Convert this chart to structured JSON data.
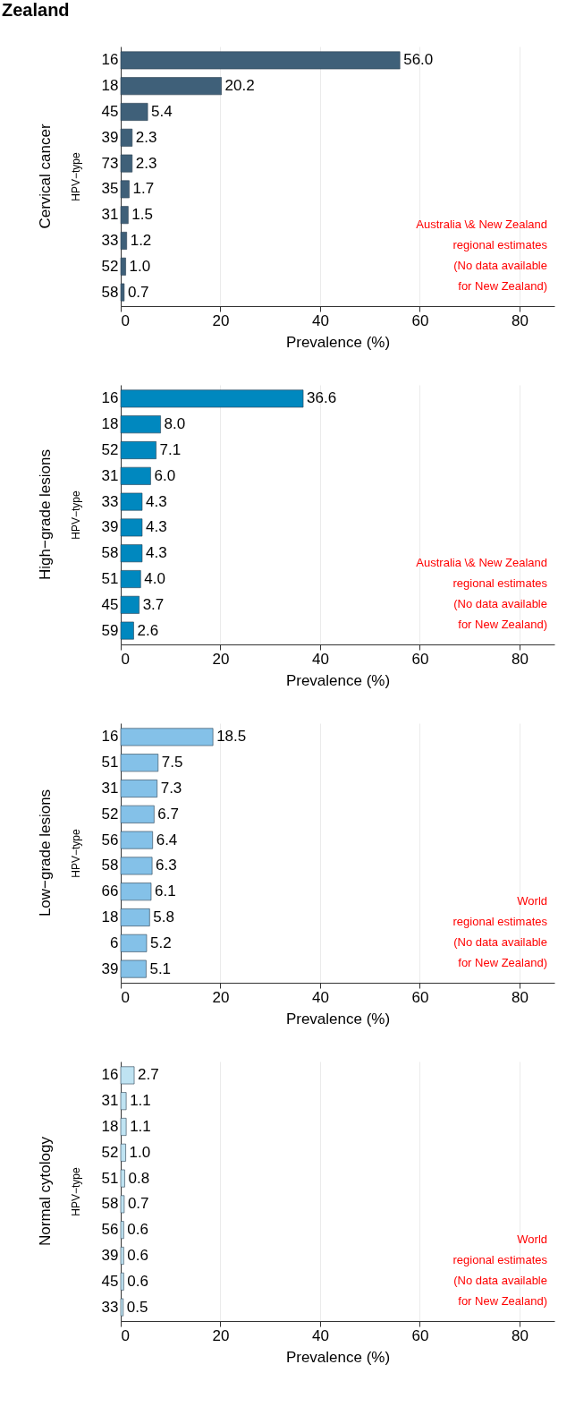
{
  "chart_data": [
    {
      "type": "bar",
      "orientation": "horizontal",
      "subtitle": "Zealand",
      "title": "Cervical cancer",
      "xlabel": "Prevalence (%)",
      "ylabel": "HPV−type",
      "categories": [
        "16",
        "18",
        "45",
        "39",
        "73",
        "35",
        "31",
        "33",
        "52",
        "58"
      ],
      "values": [
        56.0,
        20.2,
        5.4,
        2.3,
        2.3,
        1.7,
        1.5,
        1.2,
        1.0,
        0.7
      ],
      "color": "#3f6079",
      "value_labels": [
        "56.0",
        "20.2",
        "5.4",
        "2.3",
        "2.3",
        "1.7",
        "1.5",
        "1.2",
        "1.0",
        "0.7"
      ],
      "xlim": [
        0,
        87
      ],
      "xticks": [
        0,
        20,
        40,
        60,
        80
      ],
      "grid": "x",
      "annotations": [
        "Australia \\& New Zealand",
        "regional estimates",
        "(No data available",
        "for New Zealand)"
      ]
    },
    {
      "type": "bar",
      "orientation": "horizontal",
      "title": "High−grade lesions",
      "xlabel": "Prevalence (%)",
      "ylabel": "HPV−type",
      "categories": [
        "16",
        "18",
        "52",
        "31",
        "33",
        "39",
        "58",
        "51",
        "45",
        "59"
      ],
      "values": [
        36.6,
        8.0,
        7.1,
        6.0,
        4.3,
        4.3,
        4.3,
        4.0,
        3.7,
        2.6
      ],
      "color": "#0088bf",
      "value_labels": [
        "36.6",
        "8.0",
        "7.1",
        "6.0",
        "4.3",
        "4.3",
        "4.3",
        "4.0",
        "3.7",
        "2.6"
      ],
      "xlim": [
        0,
        87
      ],
      "xticks": [
        0,
        20,
        40,
        60,
        80
      ],
      "grid": "x",
      "annotations": [
        "Australia \\& New Zealand",
        "regional estimates",
        "(No data available",
        "for New Zealand)"
      ]
    },
    {
      "type": "bar",
      "orientation": "horizontal",
      "title": "Low−grade lesions",
      "xlabel": "Prevalence (%)",
      "ylabel": "HPV−type",
      "categories": [
        "16",
        "51",
        "31",
        "52",
        "56",
        "58",
        "66",
        "18",
        "6",
        "39"
      ],
      "values": [
        18.5,
        7.5,
        7.3,
        6.7,
        6.4,
        6.3,
        6.1,
        5.8,
        5.2,
        5.1
      ],
      "color": "#84c1e8",
      "value_labels": [
        "18.5",
        "7.5",
        "7.3",
        "6.7",
        "6.4",
        "6.3",
        "6.1",
        "5.8",
        "5.2",
        "5.1"
      ],
      "xlim": [
        0,
        87
      ],
      "xticks": [
        0,
        20,
        40,
        60,
        80
      ],
      "grid": "x",
      "annotations": [
        "World",
        "regional estimates",
        "(No data available",
        "for New Zealand)"
      ]
    },
    {
      "type": "bar",
      "orientation": "horizontal",
      "title": "Normal cytology",
      "xlabel": "Prevalence (%)",
      "ylabel": "HPV−type",
      "categories": [
        "16",
        "31",
        "18",
        "52",
        "51",
        "58",
        "56",
        "39",
        "45",
        "33"
      ],
      "values": [
        2.7,
        1.1,
        1.1,
        1.0,
        0.8,
        0.7,
        0.6,
        0.6,
        0.6,
        0.5
      ],
      "color": "#bfe3f2",
      "value_labels": [
        "2.7",
        "1.1",
        "1.1",
        "1.0",
        "0.8",
        "0.7",
        "0.6",
        "0.6",
        "0.6",
        "0.5"
      ],
      "xlim": [
        0,
        87
      ],
      "xticks": [
        0,
        20,
        40,
        60,
        80
      ],
      "grid": "x",
      "annotations": [
        "World",
        "regional estimates",
        "(No data available",
        "for New Zealand)"
      ]
    }
  ]
}
